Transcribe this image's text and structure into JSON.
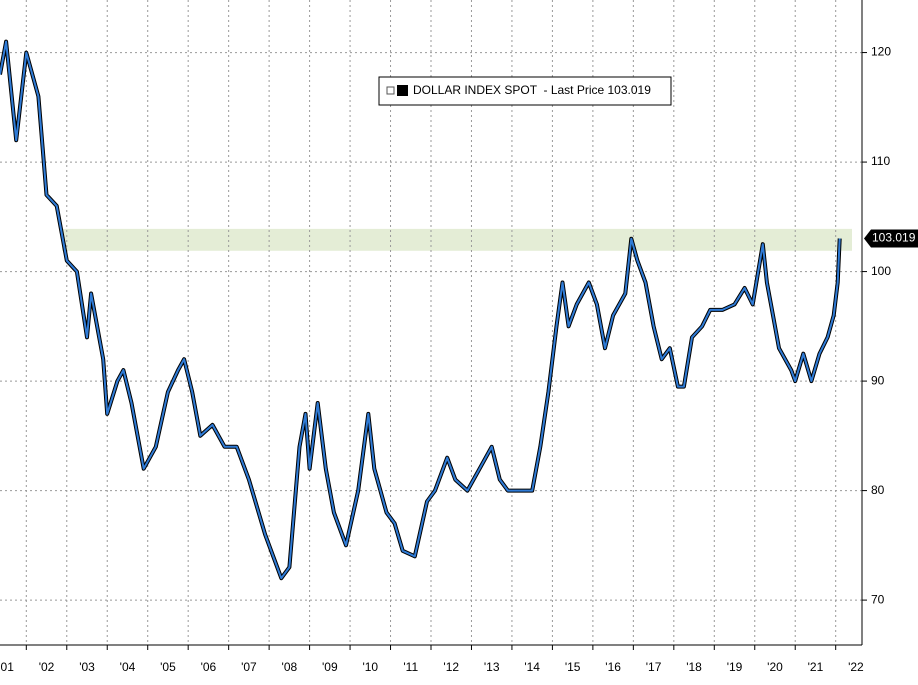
{
  "chart_data": {
    "type": "line",
    "x": [
      2001.35,
      2001.5,
      2001.75,
      2002.0,
      2002.3,
      2002.5,
      2002.75,
      2003.0,
      2003.25,
      2003.5,
      2003.6,
      2003.9,
      2004.0,
      2004.25,
      2004.4,
      2004.6,
      2004.9,
      2005.2,
      2005.5,
      2005.75,
      2005.9,
      2006.1,
      2006.3,
      2006.6,
      2006.9,
      2007.2,
      2007.5,
      2007.9,
      2008.1,
      2008.3,
      2008.5,
      2008.75,
      2008.9,
      2009.0,
      2009.2,
      2009.4,
      2009.6,
      2009.9,
      2010.2,
      2010.45,
      2010.6,
      2010.9,
      2011.1,
      2011.3,
      2011.6,
      2011.9,
      2012.1,
      2012.4,
      2012.6,
      2012.9,
      2013.2,
      2013.5,
      2013.7,
      2013.9,
      2014.2,
      2014.5,
      2014.7,
      2014.9,
      2015.1,
      2015.25,
      2015.4,
      2015.6,
      2015.9,
      2016.1,
      2016.3,
      2016.5,
      2016.8,
      2016.95,
      2017.1,
      2017.3,
      2017.5,
      2017.7,
      2017.9,
      2018.1,
      2018.25,
      2018.45,
      2018.7,
      2018.9,
      2019.2,
      2019.5,
      2019.75,
      2019.95,
      2020.2,
      2020.3,
      2020.45,
      2020.6,
      2020.9,
      2021.0,
      2021.2,
      2021.4,
      2021.6,
      2021.8,
      2021.95,
      2022.05,
      2022.1
    ],
    "series": [
      {
        "name": "DOLLAR INDEX SPOT  - Last Price 103.019",
        "color": "#2f7bd6",
        "values": [
          118,
          121,
          112,
          120,
          116,
          107,
          106,
          101,
          100,
          94,
          98,
          92,
          87,
          90,
          91,
          88,
          82,
          84,
          89,
          91,
          92,
          89,
          85,
          86,
          84,
          84,
          81,
          76,
          74,
          72,
          73,
          84,
          87,
          82,
          88,
          82,
          78,
          75,
          80,
          87,
          82,
          78,
          77,
          74.5,
          74,
          79,
          80,
          83,
          81,
          80,
          82,
          84,
          81,
          80,
          80,
          80,
          84,
          89,
          95,
          99,
          95,
          97,
          99,
          97,
          93,
          96,
          98,
          103,
          101,
          99,
          95,
          92,
          93,
          89.5,
          89.5,
          94,
          95,
          96.5,
          96.5,
          97,
          98.5,
          97,
          102.5,
          99,
          96,
          93,
          91,
          90,
          92.5,
          90,
          92.5,
          94,
          96,
          99,
          103.019
        ]
      }
    ],
    "xlim": [
      2001.35,
      2022.65
    ],
    "xticks": [
      {
        "value": 2001,
        "label": "'01"
      },
      {
        "value": 2002,
        "label": "'02"
      },
      {
        "value": 2003,
        "label": "'03"
      },
      {
        "value": 2004,
        "label": "'04"
      },
      {
        "value": 2005,
        "label": "'05"
      },
      {
        "value": 2006,
        "label": "'06"
      },
      {
        "value": 2007,
        "label": "'07"
      },
      {
        "value": 2008,
        "label": "'08"
      },
      {
        "value": 2009,
        "label": "'09"
      },
      {
        "value": 2010,
        "label": "'10"
      },
      {
        "value": 2011,
        "label": "'11"
      },
      {
        "value": 2012,
        "label": "'12"
      },
      {
        "value": 2013,
        "label": "'13"
      },
      {
        "value": 2014,
        "label": "'14"
      },
      {
        "value": 2015,
        "label": "'15"
      },
      {
        "value": 2016,
        "label": "'16"
      },
      {
        "value": 2017,
        "label": "'17"
      },
      {
        "value": 2018,
        "label": "'18"
      },
      {
        "value": 2019,
        "label": "'19"
      },
      {
        "value": 2020,
        "label": "'20"
      },
      {
        "value": 2021,
        "label": "'21"
      },
      {
        "value": 2022,
        "label": "'22"
      }
    ],
    "ylim": [
      65.9,
      124.8
    ],
    "yticks": [
      70,
      80,
      90,
      100,
      110,
      120
    ],
    "highlight_band": [
      101.9,
      103.9
    ],
    "grid": true
  }
}
